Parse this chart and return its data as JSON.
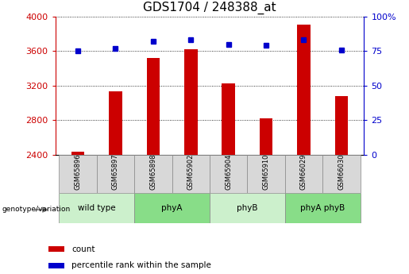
{
  "title": "GDS1704 / 248388_at",
  "samples": [
    "GSM65896",
    "GSM65897",
    "GSM65898",
    "GSM65902",
    "GSM65904",
    "GSM65910",
    "GSM66029",
    "GSM66030"
  ],
  "counts": [
    2432,
    3135,
    3520,
    3625,
    3230,
    2820,
    3910,
    3075
  ],
  "percentile_ranks": [
    75,
    77,
    82,
    83,
    80,
    79,
    83,
    76
  ],
  "groups": [
    {
      "label": "wild type",
      "samples": [
        0,
        1
      ],
      "color": "#ccf0cc"
    },
    {
      "label": "phyA",
      "samples": [
        2,
        3
      ],
      "color": "#88dd88"
    },
    {
      "label": "phyB",
      "samples": [
        4,
        5
      ],
      "color": "#ccf0cc"
    },
    {
      "label": "phyA phyB",
      "samples": [
        6,
        7
      ],
      "color": "#88dd88"
    }
  ],
  "ymin": 2400,
  "ymax": 4000,
  "yticks": [
    2400,
    2800,
    3200,
    3600,
    4000
  ],
  "y2ticks": [
    0,
    25,
    50,
    75,
    100
  ],
  "bar_color": "#cc0000",
  "dot_color": "#0000cc",
  "bar_width": 0.35,
  "genotype_label": "genotype/variation",
  "legend_count": "count",
  "legend_pct": "percentile rank within the sample",
  "tick_label_color_left": "#cc0000",
  "tick_label_color_right": "#0000cc",
  "title_fontsize": 11,
  "axis_fontsize": 8,
  "sample_cell_color": "#d8d8d8"
}
